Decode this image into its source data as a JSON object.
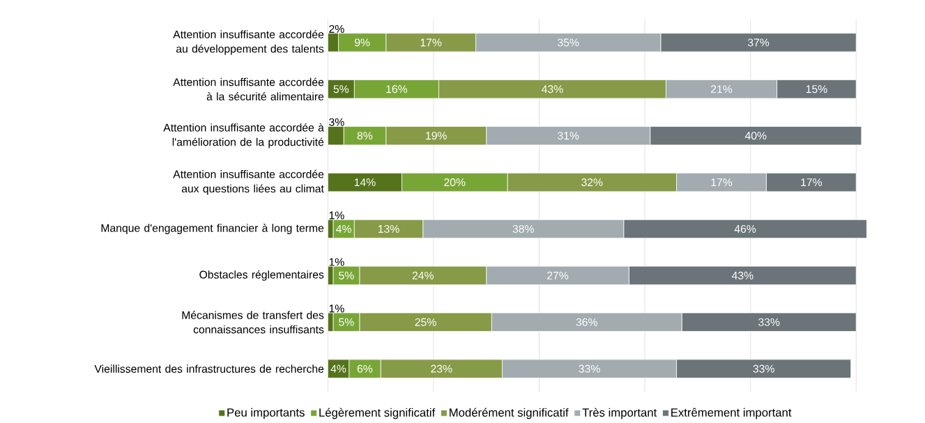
{
  "chart_data": {
    "type": "bar",
    "orientation": "horizontal",
    "stacked": true,
    "legend": "bottom",
    "grid": "x",
    "tick_labels": "y",
    "categories": [
      "Attention insuffisante accordée au développement des talents",
      "Attention insuffisante accordée à la sécurité alimentaire",
      "Attention insuffisante accordée à l'amélioration de la productivité",
      "Attention insuffisante accordée aux questions liées au climat",
      "Manque d'engagement financier à long terme",
      "Obstacles réglementaires",
      "Mécanismes de transfert des connaissances insuffisants",
      "Vieillissement des infrastructures de recherche"
    ],
    "xlim": [
      0,
      102
    ],
    "xticks": [
      {
        "value": 0,
        "label": null
      },
      {
        "value": 20,
        "label": null
      },
      {
        "value": 40,
        "label": null
      },
      {
        "value": 60,
        "label": null
      },
      {
        "value": 80,
        "label": null
      },
      {
        "value": 100,
        "label": null
      }
    ],
    "series": [
      {
        "name": "Peu importants",
        "color": "#55731b",
        "values": [
          2,
          5,
          3,
          14,
          1,
          1,
          1,
          4
        ],
        "value_labels": [
          "2%",
          "5%",
          "3%",
          "14%",
          "1%",
          "1%",
          "1%",
          "4%"
        ]
      },
      {
        "name": "Légèrement significatif",
        "color": "#78a636",
        "values": [
          9,
          16,
          8,
          20,
          4,
          5,
          5,
          6
        ],
        "value_labels": [
          "9%",
          "16%",
          "8%",
          "20%",
          "4%",
          "5%",
          "5%",
          "6%"
        ]
      },
      {
        "name": "Modérément significatif",
        "color": "#879a48",
        "values": [
          17,
          43,
          19,
          32,
          13,
          24,
          25,
          23
        ],
        "value_labels": [
          "17%",
          "43%",
          "19%",
          "32%",
          "13%",
          "24%",
          "25%",
          "23%"
        ]
      },
      {
        "name": "Très important",
        "color": "#a2abaf",
        "values": [
          35,
          21,
          31,
          17,
          38,
          27,
          36,
          33
        ],
        "value_labels": [
          "35%",
          "21%",
          "31%",
          "17%",
          "38%",
          "27%",
          "36%",
          "33%"
        ]
      },
      {
        "name": "Extrêmement important",
        "color": "#6a7479",
        "values": [
          37,
          15,
          40,
          17,
          46,
          43,
          33,
          33
        ],
        "value_labels": [
          "37%",
          "15%",
          "40%",
          "17%",
          "46%",
          "43%",
          "33%",
          "33%"
        ]
      }
    ]
  }
}
